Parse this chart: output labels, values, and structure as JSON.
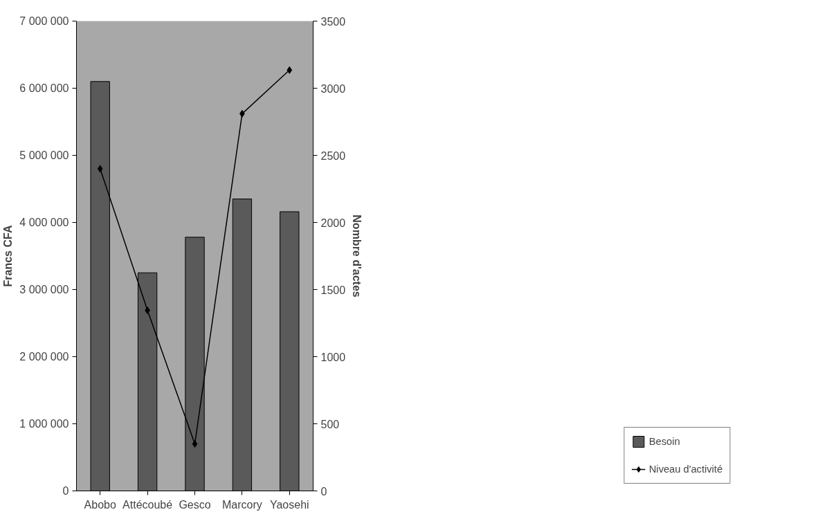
{
  "chart_data": {
    "type": "bar",
    "categories": [
      "Abobo",
      "Attécoubé",
      "Gesco",
      "Marcory",
      "Yaosehi"
    ],
    "ylabel": "Francs CFA",
    "y2label": "Nombre d'actes",
    "ylim": [
      0,
      7000000
    ],
    "yticks": [
      {
        "value": 0,
        "label": "0"
      },
      {
        "value": 1000000,
        "label": "1 000 000"
      },
      {
        "value": 2000000,
        "label": "2 000 000"
      },
      {
        "value": 3000000,
        "label": "3 000 000"
      },
      {
        "value": 4000000,
        "label": "4 000 000"
      },
      {
        "value": 5000000,
        "label": "5 000 000"
      },
      {
        "value": 6000000,
        "label": "6 000 000"
      },
      {
        "value": 7000000,
        "label": "7 000 000"
      }
    ],
    "y2lim": [
      0,
      3500
    ],
    "y2ticks": [
      0,
      500,
      1000,
      1500,
      2000,
      2500,
      3000,
      3500
    ],
    "series": [
      {
        "name": "Besoin",
        "color": "#5a5a5a",
        "values": [
          6100000,
          3250000,
          3780000,
          4350000,
          4160000
        ]
      },
      {
        "name": "Niveau d'activité",
        "type": "line",
        "axis": "y2",
        "color": "#000000",
        "marker": "diamond",
        "line_style": "solid",
        "values": [
          2400,
          1345,
          350,
          2810,
          3135
        ]
      }
    ],
    "grid": false,
    "legend": "bottom right"
  }
}
